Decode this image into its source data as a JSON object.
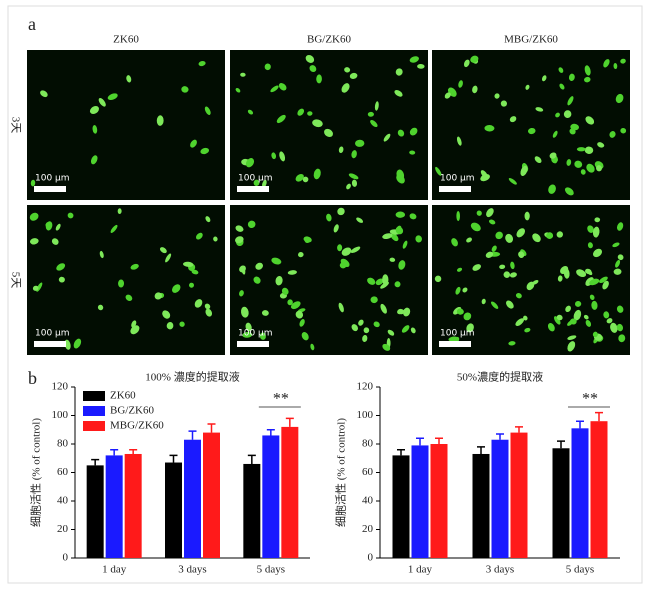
{
  "panel_a": {
    "label": "a",
    "columns": [
      "ZK60",
      "BG/ZK60",
      "MBG/ZK60"
    ],
    "rows": [
      "3天",
      "5天"
    ],
    "scale_bars": [
      "100 μm",
      "100 μm",
      "100 μm",
      "100 μm",
      "100 μm",
      "100 μm"
    ]
  },
  "panel_b": {
    "label": "b"
  },
  "chart_data": [
    {
      "type": "bar",
      "title": "100% 濃度的提取液",
      "ylabel": "细胞活性 (% of control)",
      "categories": [
        "1 day",
        "3 days",
        "5 days"
      ],
      "ylim": [
        0,
        120
      ],
      "yticks": [
        0,
        20,
        40,
        60,
        80,
        100,
        120
      ],
      "legend": "upper left",
      "series": [
        {
          "name": "ZK60",
          "color": "#000000",
          "values": [
            65,
            67,
            66
          ],
          "errors": [
            4,
            5,
            6
          ]
        },
        {
          "name": "BG/ZK60",
          "color": "#1a1aff",
          "values": [
            72,
            83,
            86
          ],
          "errors": [
            4,
            6,
            4
          ]
        },
        {
          "name": "MBG/ZK60",
          "color": "#ff1a1a",
          "values": [
            73,
            88,
            92
          ],
          "errors": [
            3,
            6,
            6
          ]
        }
      ],
      "annotations": [
        {
          "text": "**",
          "category": "5 days"
        }
      ]
    },
    {
      "type": "bar",
      "title": "50%濃度的提取液",
      "ylabel": "细胞活性 (% of control)",
      "categories": [
        "1 day",
        "3 days",
        "5 days"
      ],
      "ylim": [
        0,
        120
      ],
      "yticks": [
        0,
        20,
        40,
        60,
        80,
        100,
        120
      ],
      "series": [
        {
          "color": "#000000",
          "values": [
            72,
            73,
            77
          ],
          "errors": [
            4,
            5,
            5
          ]
        },
        {
          "color": "#1a1aff",
          "values": [
            79,
            83,
            91
          ],
          "errors": [
            5,
            4,
            5
          ]
        },
        {
          "color": "#ff1a1a",
          "values": [
            80,
            88,
            96
          ],
          "errors": [
            4,
            4,
            6
          ]
        }
      ],
      "annotations": [
        {
          "text": "**",
          "category": "5 days"
        }
      ]
    }
  ]
}
